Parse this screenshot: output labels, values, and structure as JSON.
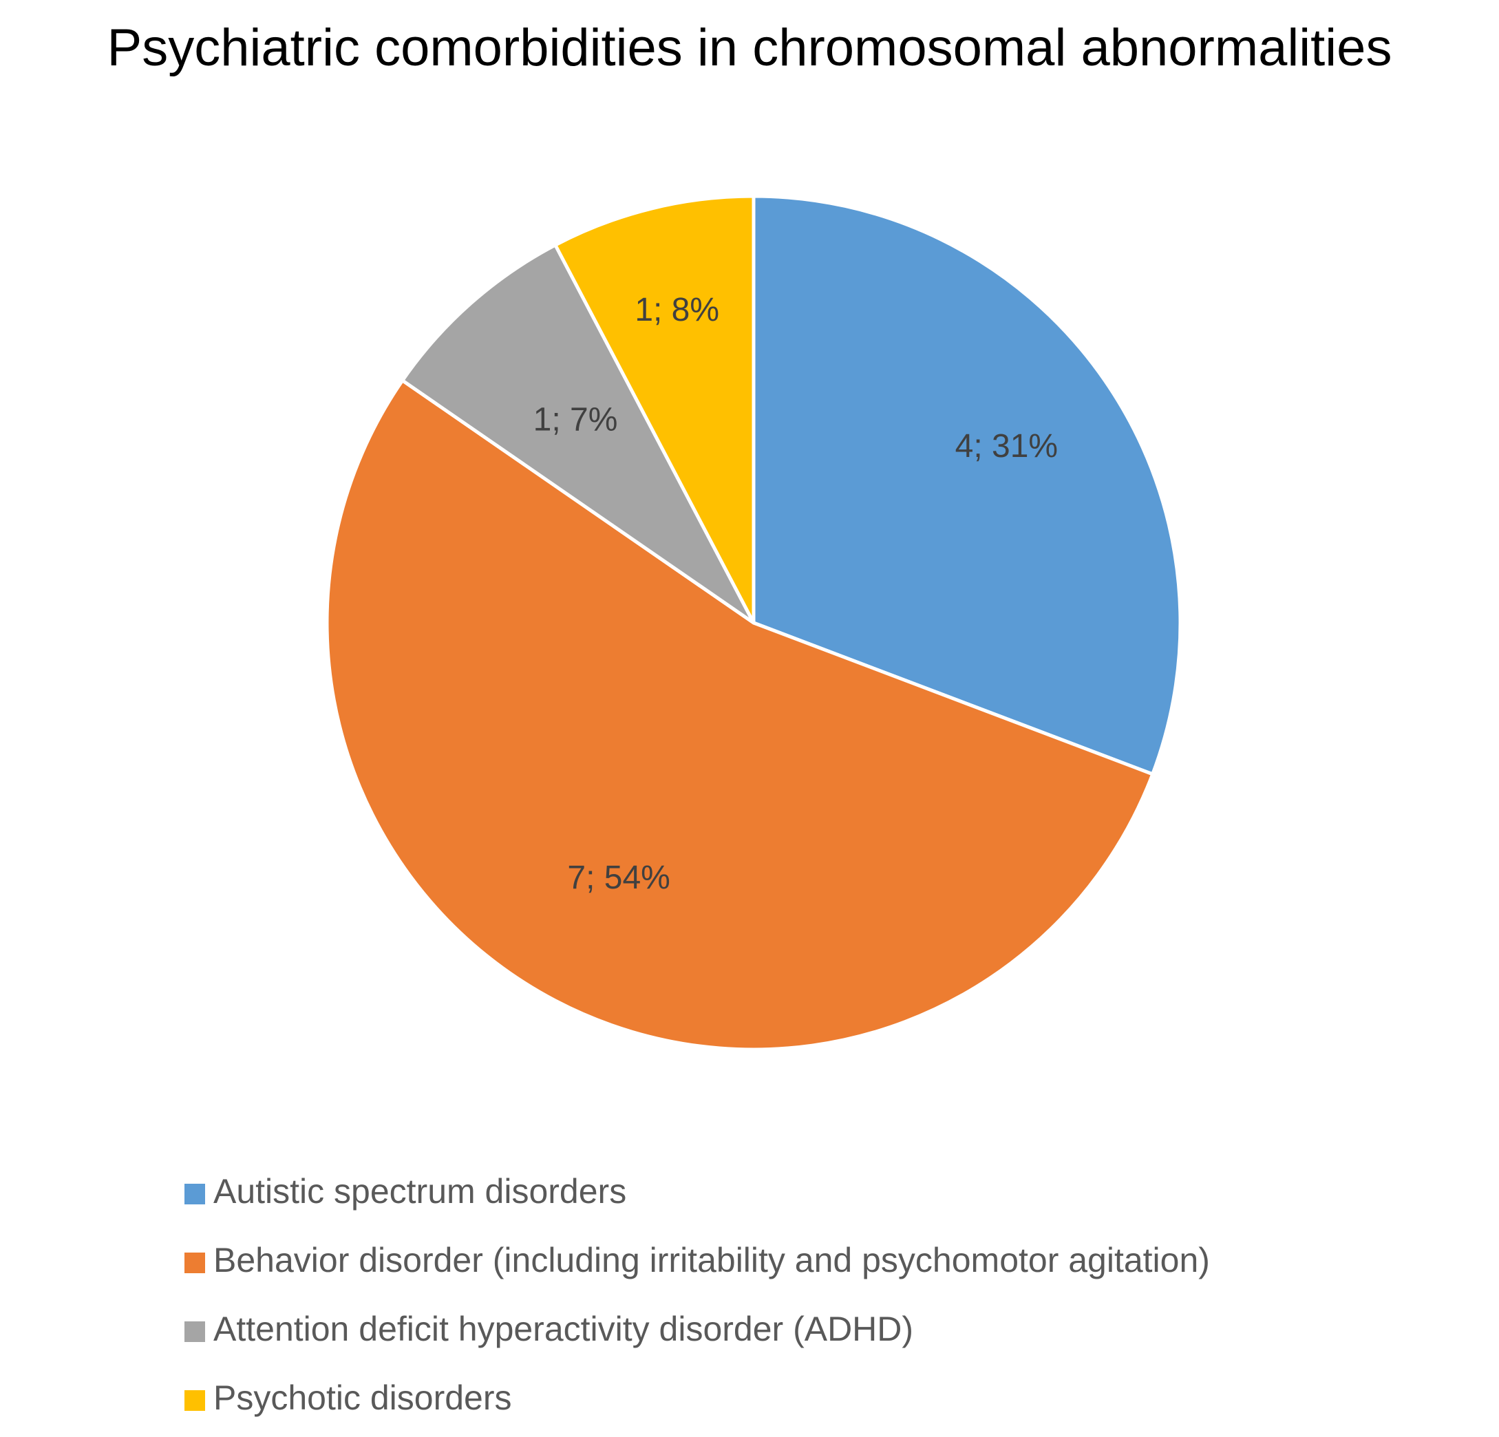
{
  "chart_data": {
    "type": "pie",
    "title": "Psychiatric comorbidities in chromosomal abnormalities",
    "categories": [
      "Autistic spectrum disorders",
      "Behavior disorder (including irritability and psychomotor agitation)",
      "Attention deficit hyperactivity disorder (ADHD)",
      "Psychotic disorders"
    ],
    "values": [
      4,
      7,
      1,
      1
    ],
    "data_labels": [
      "4; 31%",
      "7; 54%",
      "1; 7%",
      "1; 8%"
    ],
    "colors": [
      "#5B9BD5",
      "#ED7D31",
      "#A5A5A5",
      "#FFC000"
    ],
    "legend_position": "bottom",
    "start_angle": "top, clockwise"
  }
}
